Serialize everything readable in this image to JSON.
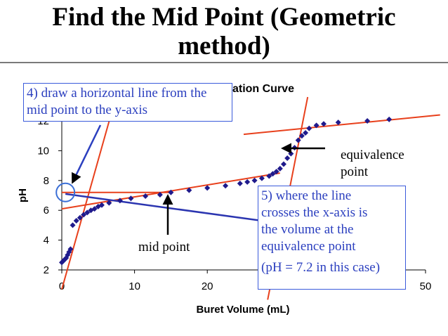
{
  "slide": {
    "title_line1": "Find the Mid Point (Geometric",
    "title_line2": "method)"
  },
  "callouts": {
    "horizontal_line": [
      "4) draw a horizontal line from the",
      "mid point to the y-axis"
    ],
    "crosses": [
      "5) where the line",
      "crosses the x-axis is",
      "the volume at the",
      "equivalence point",
      "(pH = 7.2 in this case)"
    ]
  },
  "labels": {
    "equivalence": [
      "equivalence",
      "point"
    ],
    "mid_point": "mid point"
  },
  "colors": {
    "data_marker": "#1f1a8c",
    "construction_line": "#e8401c",
    "pointer_line": "#2b35b0",
    "callout_text": "#2b3fbf"
  },
  "chart_data": {
    "type": "scatter",
    "title": "Weak Acid Titration Curve",
    "xlabel": "Buret Volume (mL)",
    "ylabel": "pH",
    "xlim": [
      0,
      50
    ],
    "ylim": [
      2,
      12
    ],
    "x_ticks": [
      0,
      10,
      20,
      30,
      40,
      50
    ],
    "y_ticks": [
      2,
      4,
      6,
      8,
      10,
      12
    ],
    "x_tick_labels": [
      "0",
      "10",
      "20",
      "",
      "",
      "50"
    ],
    "y_tick_labels": [
      "2",
      "4",
      "6",
      "8",
      "10",
      "12"
    ],
    "grid": false,
    "series": [
      {
        "marker": "diamond",
        "x": [
          0,
          0.2,
          0.4,
          0.6,
          0.8,
          1.0,
          1.2,
          1.5,
          2.0,
          2.5,
          3.0,
          3.5,
          4.0,
          4.5,
          5.0,
          5.5,
          6.5,
          8.0,
          9.5,
          11.5,
          13.5,
          15.0,
          17.5,
          20.0,
          22.5,
          24.5,
          25.5,
          26.5,
          27.5,
          28.5,
          29.0,
          29.5,
          30.0,
          30.5,
          31.0,
          31.5,
          32.0,
          32.5,
          33.0,
          33.5,
          34.0,
          35.0,
          36.0,
          38.0,
          42.0,
          45.0
        ],
        "y": [
          2.5,
          2.6,
          2.7,
          2.8,
          3.0,
          3.2,
          3.4,
          5.0,
          5.3,
          5.5,
          5.7,
          5.85,
          6.0,
          6.1,
          6.25,
          6.35,
          6.5,
          6.65,
          6.8,
          6.95,
          7.05,
          7.2,
          7.35,
          7.5,
          7.65,
          7.8,
          7.9,
          8.0,
          8.15,
          8.3,
          8.45,
          8.6,
          8.8,
          9.1,
          9.5,
          9.8,
          10.2,
          10.7,
          11.0,
          11.2,
          11.5,
          11.7,
          11.8,
          11.9,
          12.0,
          12.1
        ]
      }
    ],
    "construction_lines": {
      "lower_buffer": {
        "x": [
          0,
          30
        ],
        "y": [
          6.1,
          8.5
        ]
      },
      "steep_part": {
        "x": [
          0,
          7.5
        ],
        "y": [
          0.7,
          13.7
        ]
      },
      "equivalence_vertical": {
        "x": [
          28.3,
          33.8
        ],
        "y": [
          0,
          13.6
        ]
      },
      "upper_plateau": {
        "x": [
          25,
          52
        ],
        "y": [
          11.1,
          12.4
        ]
      },
      "midpoint_horizontal": {
        "x": [
          0,
          15
        ],
        "y": [
          7.2,
          7.2
        ]
      }
    },
    "pointer_line": {
      "x": [
        0.5,
        41
      ],
      "y": [
        7.1,
        4.4
      ]
    }
  }
}
